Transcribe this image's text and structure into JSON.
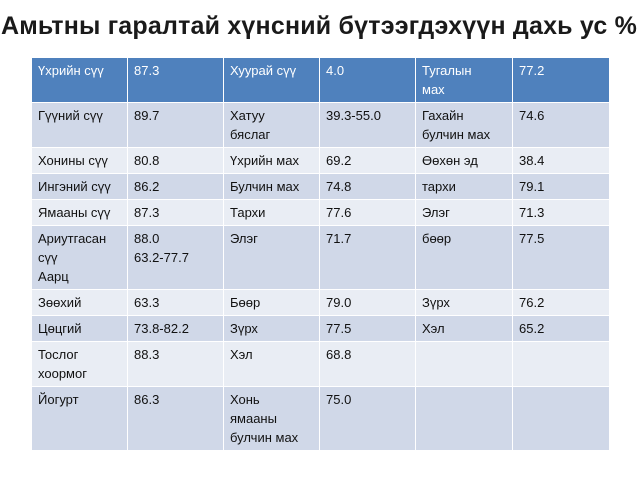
{
  "title": "Амьтны гаралтай хүнсний бүтээгдэхүүн дахь ус %",
  "table": {
    "rows": [
      [
        "Үхрийн сүү",
        "87.3",
        "Хуурай сүү",
        "4.0",
        "Тугалын\nмах",
        "77.2"
      ],
      [
        "Гүүний сүү",
        "89.7",
        "Хатуу\nбяслаг",
        "39.3-55.0",
        "Гахайн\nбулчин  мах",
        "74.6"
      ],
      [
        "Хонины сүү",
        "80.8",
        "Үхрийн мах",
        "69.2",
        "Өөхөн эд",
        "38.4"
      ],
      [
        "Ингэний сүү",
        "86.2",
        "Булчин мах",
        "74.8",
        "тархи",
        "79.1"
      ],
      [
        "Ямааны сүү",
        "87.3",
        "Тархи",
        "77.6",
        "Элэг",
        "71.3"
      ],
      [
        "Ариутгасан\nсүү\nАарц",
        "88.0\n63.2-77.7",
        "Элэг",
        "71.7",
        "бөөр",
        "77.5"
      ],
      [
        "Зөөхий",
        "63.3",
        "Бөөр",
        "79.0",
        "Зүрх",
        "76.2"
      ],
      [
        "Цөцгий",
        "73.8-82.2",
        "Зүрх",
        "77.5",
        "Хэл",
        "65.2"
      ],
      [
        "Тослог\nхоормог",
        "88.3",
        "Хэл",
        "68.8",
        "",
        ""
      ],
      [
        "Йогурт",
        "86.3",
        "Хонь\nямааны\nбулчин мах",
        "75.0",
        "",
        ""
      ]
    ]
  },
  "colors": {
    "header_bg": "#4f81bd",
    "row_odd_bg": "#d0d8e8",
    "row_even_bg": "#e9edf4"
  }
}
